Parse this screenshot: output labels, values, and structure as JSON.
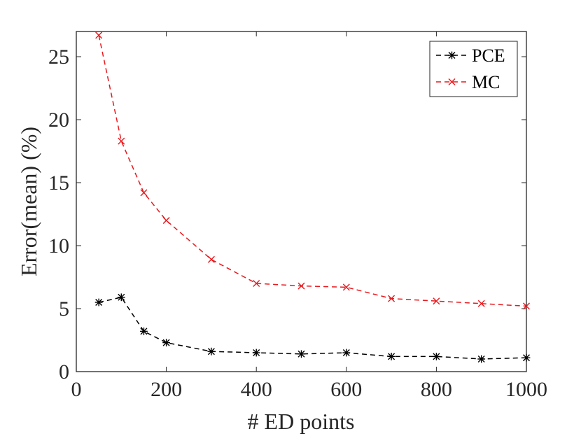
{
  "chart_data": {
    "type": "line",
    "title": "",
    "xlabel": "# ED points",
    "ylabel": "Error(mean) (%)",
    "xlim": [
      0,
      1000
    ],
    "ylim": [
      0,
      27
    ],
    "xticks": [
      0,
      200,
      400,
      600,
      800,
      1000
    ],
    "yticks": [
      0,
      5,
      10,
      15,
      20,
      25
    ],
    "x_tick_labels": [
      "0",
      "200",
      "400",
      "600",
      "800",
      "1000"
    ],
    "y_tick_labels": [
      "0",
      "5",
      "10",
      "15",
      "20",
      "25"
    ],
    "grid": false,
    "legend_position": "top-right",
    "x": [
      50,
      100,
      150,
      200,
      300,
      400,
      500,
      600,
      700,
      800,
      900,
      1000
    ],
    "series": [
      {
        "name": "PCE",
        "color": "#000000",
        "marker": "asterisk",
        "line_style": "dashed",
        "values": [
          5.5,
          5.9,
          3.2,
          2.3,
          1.6,
          1.5,
          1.4,
          1.5,
          1.2,
          1.2,
          1.0,
          1.1
        ]
      },
      {
        "name": "MC",
        "color": "#e8191e",
        "marker": "cross",
        "line_style": "dashed",
        "values": [
          26.7,
          18.3,
          14.2,
          12.0,
          8.9,
          7.0,
          6.8,
          6.7,
          5.8,
          5.6,
          5.4,
          5.2
        ]
      }
    ]
  }
}
